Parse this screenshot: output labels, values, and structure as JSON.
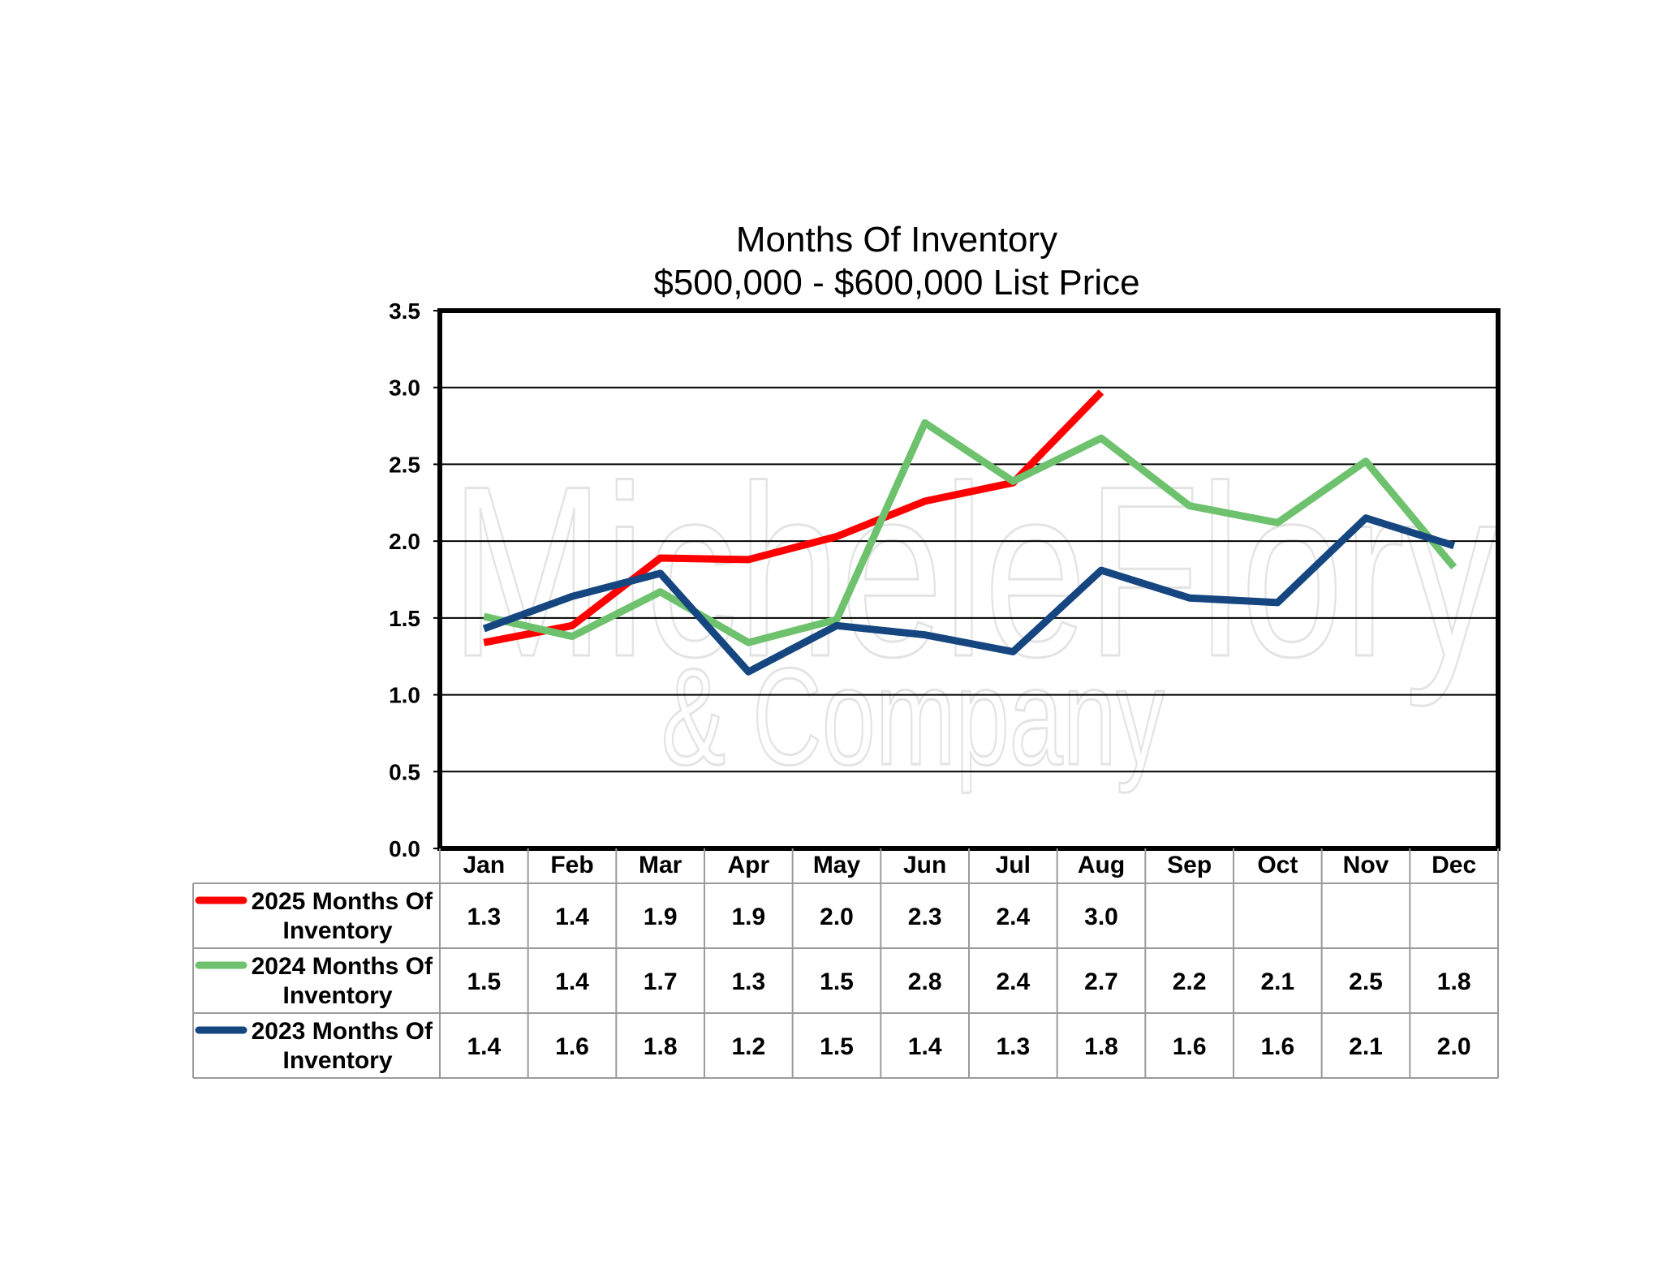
{
  "watermark": {
    "line1": "MicheleFlory",
    "line2": "& Company"
  },
  "chart_data": {
    "type": "line",
    "title": "Months Of Inventory",
    "subtitle": "$500,000 - $600,000 List Price",
    "categories": [
      "Jan",
      "Feb",
      "Mar",
      "Apr",
      "May",
      "Jun",
      "Jul",
      "Aug",
      "Sep",
      "Oct",
      "Nov",
      "Dec"
    ],
    "ylim": [
      0,
      3.5
    ],
    "yticks": [
      "0.0",
      "0.5",
      "1.0",
      "1.5",
      "2.0",
      "2.5",
      "3.0",
      "3.5"
    ],
    "grid": true,
    "legend": "data-table-left",
    "series": [
      {
        "name_line1": "2025 Months Of",
        "name_line2": "Inventory",
        "color": "#ff0000",
        "values": [
          1.34,
          1.45,
          1.89,
          1.88,
          2.03,
          2.26,
          2.38,
          2.97,
          null,
          null,
          null,
          null
        ],
        "labels": [
          "1.3",
          "1.4",
          "1.9",
          "1.9",
          "2.0",
          "2.3",
          "2.4",
          "3.0",
          "",
          "",
          "",
          ""
        ]
      },
      {
        "name_line1": "2024 Months Of",
        "name_line2": "Inventory",
        "color": "#6ec26e",
        "values": [
          1.51,
          1.38,
          1.67,
          1.34,
          1.49,
          2.77,
          2.39,
          2.67,
          2.23,
          2.12,
          2.52,
          1.83
        ],
        "labels": [
          "1.5",
          "1.4",
          "1.7",
          "1.3",
          "1.5",
          "2.8",
          "2.4",
          "2.7",
          "2.2",
          "2.1",
          "2.5",
          "1.8"
        ]
      },
      {
        "name_line1": "2023 Months Of",
        "name_line2": "Inventory",
        "color": "#154680",
        "values": [
          1.43,
          1.64,
          1.79,
          1.15,
          1.45,
          1.39,
          1.28,
          1.81,
          1.63,
          1.6,
          2.15,
          1.97
        ],
        "labels": [
          "1.4",
          "1.6",
          "1.8",
          "1.2",
          "1.5",
          "1.4",
          "1.3",
          "1.8",
          "1.6",
          "1.6",
          "2.1",
          "2.0"
        ]
      }
    ]
  }
}
